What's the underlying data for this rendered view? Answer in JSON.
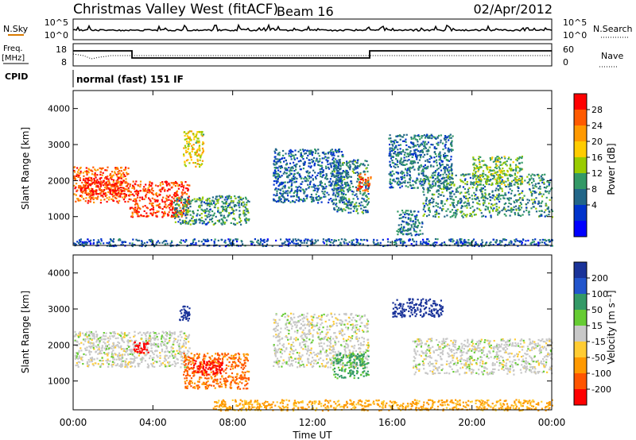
{
  "header": {
    "title": "Christmas Valley West (fitACF)",
    "beam": "Beam 16",
    "date": "02/Apr/2012"
  },
  "strips": {
    "nsky_label": "N.Sky",
    "nsky_ticks": [
      "10^5",
      "10^0"
    ],
    "nsearch_label": "N.Search",
    "nsearch_ticks": [
      "10^5",
      "10^0"
    ],
    "freq_label_1": "Freq.",
    "freq_label_2": "[MHz]",
    "freq_ticks": [
      "18",
      "8"
    ],
    "nave_label": "Nave",
    "nave_ticks": [
      "60",
      "0"
    ],
    "cpid_label": "CPID",
    "cpid_text": "normal (fast) 151 IF"
  },
  "colorbars": {
    "power": {
      "title": "Power [dB]",
      "labels": [
        "28",
        "24",
        "20",
        "16",
        "12",
        "8",
        "4"
      ],
      "colors": [
        "#ff0000",
        "#ff5a00",
        "#ff9900",
        "#ffcc00",
        "#99cc00",
        "#339966",
        "#226688",
        "#0033cc",
        "#0000ff"
      ]
    },
    "velocity": {
      "title": "Velocity [m s⁻¹]",
      "labels": [
        "200",
        "100",
        "50",
        "15",
        "-15",
        "-50",
        "-100",
        "-200"
      ],
      "colors": [
        "#1a3399",
        "#2255cc",
        "#339966",
        "#66cc33",
        "#c8c8c8",
        "#ffcc33",
        "#ff9900",
        "#ff5500",
        "#ff0000"
      ]
    }
  },
  "chart_data": [
    {
      "type": "heatmap",
      "title": "Power",
      "xlabel": "Time UT",
      "ylabel": "Slant Range [km]",
      "x_ticks": [
        "00:00",
        "04:00",
        "08:00",
        "12:00",
        "16:00",
        "20:00",
        "00:00"
      ],
      "xlim_hours": [
        0,
        24
      ],
      "y_ticks": [
        1000,
        2000,
        3000,
        4000
      ],
      "ylim_km": [
        200,
        4500
      ],
      "regions": [
        {
          "t0": 0.0,
          "t1": 2.8,
          "r0": 1400,
          "r1": 2400,
          "value": 26
        },
        {
          "t0": 0.3,
          "t1": 2.5,
          "r0": 1600,
          "r1": 2100,
          "value": 30
        },
        {
          "t0": 2.8,
          "t1": 5.8,
          "r0": 1000,
          "r1": 2000,
          "value": 28
        },
        {
          "t0": 5.0,
          "t1": 8.8,
          "r0": 800,
          "r1": 1600,
          "value": 10
        },
        {
          "t0": 5.5,
          "t1": 6.5,
          "r0": 2400,
          "r1": 3400,
          "value": 18
        },
        {
          "t0": 10.0,
          "t1": 13.5,
          "r0": 1400,
          "r1": 2900,
          "value": 7
        },
        {
          "t0": 13.0,
          "t1": 14.8,
          "r0": 1100,
          "r1": 2600,
          "value": 9
        },
        {
          "t0": 14.2,
          "t1": 14.9,
          "r0": 1700,
          "r1": 2200,
          "value": 26
        },
        {
          "t0": 16.2,
          "t1": 17.5,
          "r0": 500,
          "r1": 1200,
          "value": 8
        },
        {
          "t0": 15.8,
          "t1": 19.0,
          "r0": 1800,
          "r1": 3300,
          "value": 8
        },
        {
          "t0": 17.5,
          "t1": 24.0,
          "r0": 1000,
          "r1": 2200,
          "value": 10
        },
        {
          "t0": 20.0,
          "t1": 22.5,
          "r0": 1900,
          "r1": 2700,
          "value": 14
        },
        {
          "t0": 0.0,
          "t1": 24.0,
          "r0": 200,
          "r1": 400,
          "value": 6
        }
      ]
    },
    {
      "type": "heatmap",
      "title": "Velocity",
      "xlabel": "Time UT",
      "ylabel": "Slant Range [km]",
      "x_ticks": [
        "00:00",
        "04:00",
        "08:00",
        "12:00",
        "16:00",
        "20:00",
        "00:00"
      ],
      "xlim_hours": [
        0,
        24
      ],
      "y_ticks": [
        1000,
        2000,
        3000,
        4000
      ],
      "ylim_km": [
        200,
        4500
      ],
      "regions": [
        {
          "t0": 0.0,
          "t1": 5.8,
          "r0": 1400,
          "r1": 2400,
          "value": 0
        },
        {
          "t0": 3.0,
          "t1": 3.8,
          "r0": 1800,
          "r1": 2100,
          "value": -220
        },
        {
          "t0": 5.5,
          "t1": 8.8,
          "r0": 800,
          "r1": 1800,
          "value": -80
        },
        {
          "t0": 6.0,
          "t1": 7.5,
          "r0": 1200,
          "r1": 1600,
          "value": -210
        },
        {
          "t0": 5.3,
          "t1": 5.8,
          "r0": 2700,
          "r1": 3100,
          "value": 200
        },
        {
          "t0": 10.0,
          "t1": 14.8,
          "r0": 1400,
          "r1": 2900,
          "value": 0
        },
        {
          "t0": 13.0,
          "t1": 14.8,
          "r0": 1100,
          "r1": 1800,
          "value": 40
        },
        {
          "t0": 16.0,
          "t1": 18.5,
          "r0": 2800,
          "r1": 3300,
          "value": 210
        },
        {
          "t0": 17.0,
          "t1": 24.0,
          "r0": 1200,
          "r1": 2200,
          "value": 0
        },
        {
          "t0": 7.0,
          "t1": 24.0,
          "r0": 200,
          "r1": 500,
          "value": -40
        }
      ]
    }
  ]
}
